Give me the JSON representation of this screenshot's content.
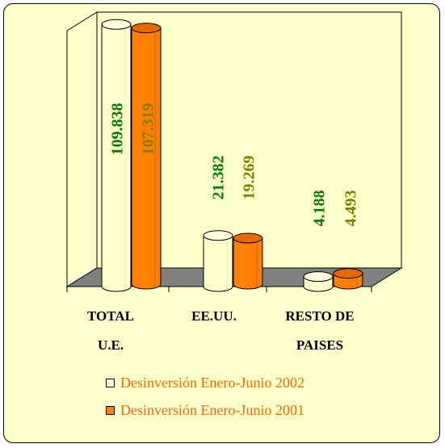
{
  "chart_data": {
    "type": "bar",
    "categories": [
      "TOTAL\nU.E.",
      "EE.UU.",
      "RESTO DE\nPAISES"
    ],
    "series": [
      {
        "name": "Desinversión Enero-Junio 2002",
        "values": [
          109.838,
          21.382,
          4.188
        ],
        "labels": [
          "109.838",
          "21.382",
          "4.188"
        ]
      },
      {
        "name": "Desinversión Enero-Junio 2001",
        "values": [
          107.319,
          19.269,
          4.493
        ],
        "labels": [
          "107.319",
          "19.269",
          "4.493"
        ]
      }
    ],
    "ylim": [
      0,
      115
    ],
    "grid": false,
    "legend_position": "bottom",
    "colors": {
      "series_2002": "#ffffcc",
      "series_2002_top": "#ffffe0",
      "series_2001": "#ff8000",
      "series_2001_top": "#e66a00",
      "label_2002": "#008000",
      "label_2001": "#808000",
      "legend_text": "#ff6600",
      "floor": "#808080",
      "background": "#ffffcc"
    }
  }
}
